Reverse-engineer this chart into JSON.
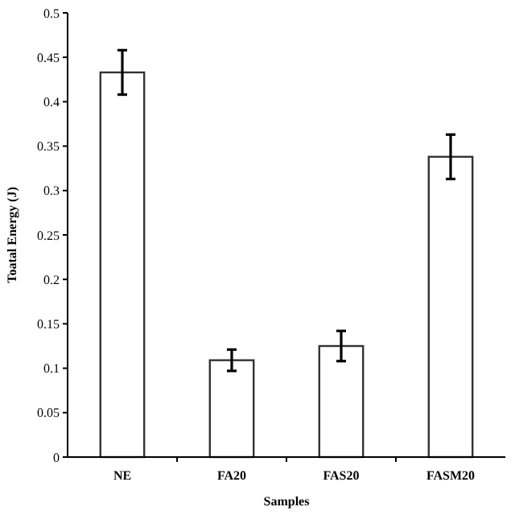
{
  "chart_data": {
    "type": "bar",
    "xlabel": "Samples",
    "ylabel": "Toatal Energy (J)",
    "categories": [
      "NE",
      "FA20",
      "FAS20",
      "FASM20"
    ],
    "values": [
      0.433,
      0.109,
      0.125,
      0.338
    ],
    "errors": [
      0.025,
      0.012,
      0.017,
      0.025
    ],
    "color": "#ffffff",
    "ylim": [
      0,
      0.5
    ],
    "yticks": [
      0,
      0.05,
      0.1,
      0.15,
      0.2,
      0.25,
      0.3,
      0.35,
      0.4,
      0.45,
      0.5
    ],
    "grid": false
  }
}
